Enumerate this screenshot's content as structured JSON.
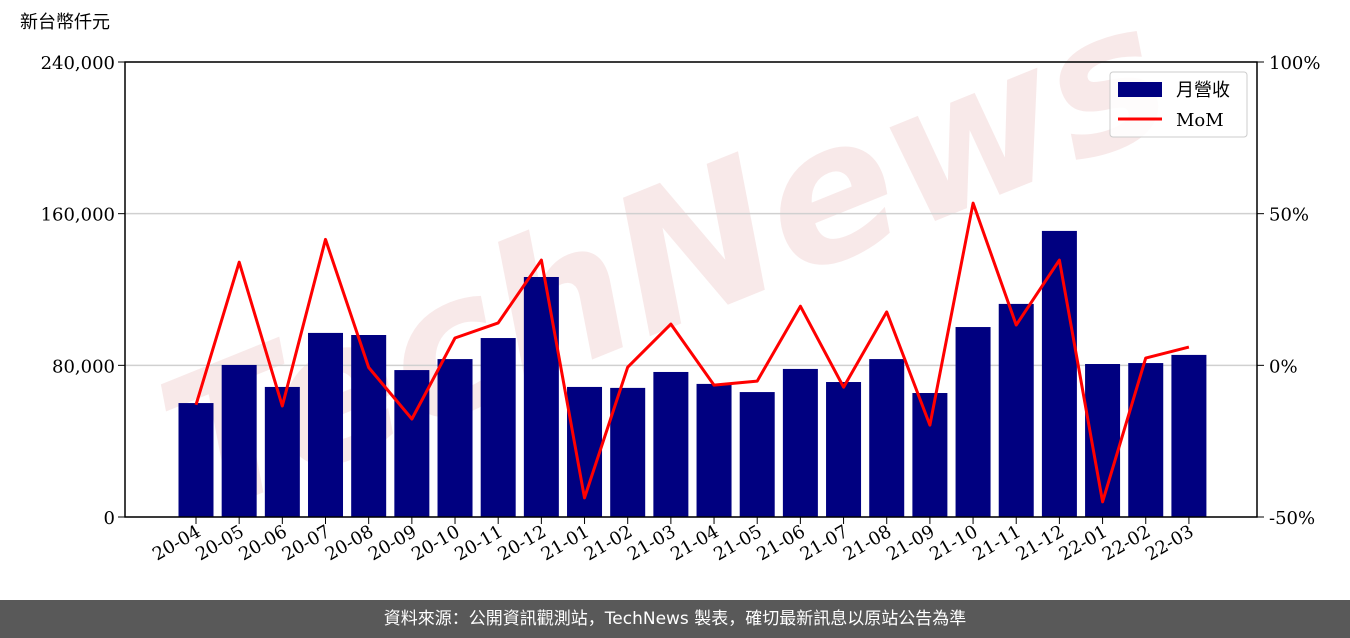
{
  "chart_data": {
    "type": "bar-line",
    "y_label": "新台幣仟元",
    "watermark": "TechNews",
    "categories": [
      "20-04",
      "20-05",
      "20-06",
      "20-07",
      "20-08",
      "20-09",
      "20-10",
      "20-11",
      "20-12",
      "21-01",
      "21-02",
      "21-03",
      "21-04",
      "21-05",
      "21-06",
      "21-07",
      "21-08",
      "21-09",
      "21-10",
      "21-11",
      "21-12",
      "22-01",
      "22-02",
      "22-03"
    ],
    "series": [
      {
        "name": "月營收",
        "type": "bar",
        "color": "#000080",
        "values": [
          60100,
          80200,
          68600,
          97100,
          96000,
          77500,
          83300,
          94400,
          126600,
          68600,
          68100,
          76500,
          70200,
          65900,
          78100,
          71200,
          83300,
          65400,
          100200,
          112400,
          150900,
          80700,
          81200,
          85500
        ]
      },
      {
        "name": "MoM",
        "type": "line",
        "axis": "y2",
        "color": "#ff0000",
        "values": [
          -13,
          34,
          -13.4,
          41.5,
          -0.7,
          -17.7,
          9,
          14,
          34.7,
          -43.7,
          -0.6,
          13.6,
          -6.5,
          -5.2,
          19.5,
          -7.2,
          17.6,
          -19.7,
          53.5,
          13.3,
          34.7,
          -45,
          2.4,
          6
        ]
      }
    ],
    "ylim": [
      0,
      240000
    ],
    "yticks": [
      0,
      {
        "value": 80000,
        "label": "80,000"
      },
      {
        "value": 160000,
        "label": "160,000"
      },
      {
        "value": 240000,
        "label": "240,000"
      }
    ],
    "y2lim": [
      -50,
      100
    ],
    "y2ticks": [
      {
        "value": -50,
        "label": "-50%"
      },
      {
        "value": 0,
        "label": "0%"
      },
      {
        "value": 50,
        "label": "50%"
      },
      {
        "value": 100,
        "label": "100%"
      }
    ],
    "grid": true,
    "legend": "upper right"
  },
  "footer": "資料來源：公開資訊觀測站，TechNews 製表，確切最新訊息以原站公告為準"
}
